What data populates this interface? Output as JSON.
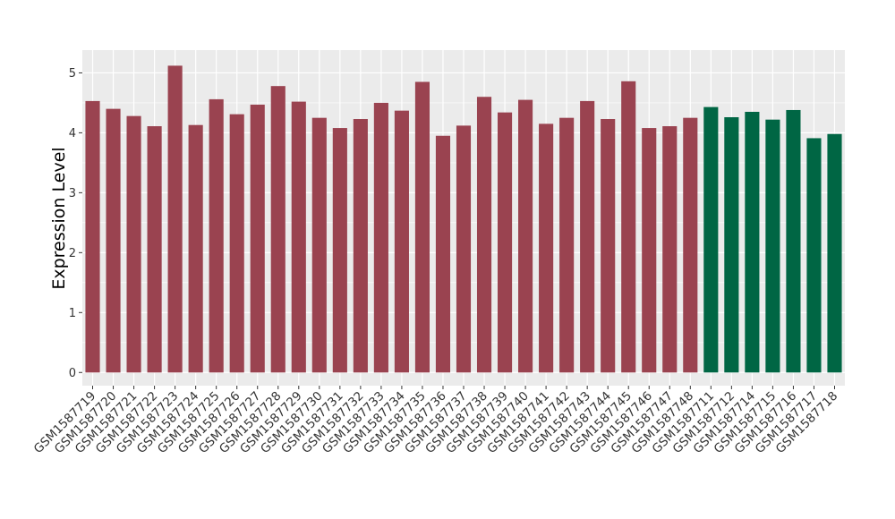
{
  "chart_data": {
    "type": "bar",
    "title": "",
    "xlabel": "",
    "ylabel": "Expression Level",
    "ylim": [
      -0.22,
      5.38
    ],
    "yticks": [
      0,
      1,
      2,
      3,
      4,
      5
    ],
    "grid": true,
    "legend": "none",
    "categories": [
      "GSM1587719",
      "GSM1587720",
      "GSM1587721",
      "GSM1587722",
      "GSM1587723",
      "GSM1587724",
      "GSM1587725",
      "GSM1587726",
      "GSM1587727",
      "GSM1587728",
      "GSM1587729",
      "GSM1587730",
      "GSM1587731",
      "GSM1587732",
      "GSM1587733",
      "GSM1587734",
      "GSM1587735",
      "GSM1587736",
      "GSM1587737",
      "GSM1587738",
      "GSM1587739",
      "GSM1587740",
      "GSM1587741",
      "GSM1587742",
      "GSM1587743",
      "GSM1587744",
      "GSM1587745",
      "GSM1587746",
      "GSM1587747",
      "GSM1587748",
      "GSM1587711",
      "GSM1587712",
      "GSM1587714",
      "GSM1587715",
      "GSM1587716",
      "GSM1587717",
      "GSM1587718"
    ],
    "values": [
      4.53,
      4.4,
      4.28,
      4.11,
      5.12,
      4.13,
      4.56,
      4.31,
      4.47,
      4.78,
      4.52,
      4.25,
      4.08,
      4.23,
      4.5,
      4.37,
      4.85,
      3.95,
      4.12,
      4.6,
      4.34,
      4.55,
      4.15,
      4.25,
      4.53,
      4.23,
      4.86,
      4.08,
      4.11,
      4.25,
      4.43,
      4.26,
      4.35,
      4.22,
      4.38,
      3.91,
      3.98
    ],
    "groups": [
      0,
      0,
      0,
      0,
      0,
      0,
      0,
      0,
      0,
      0,
      0,
      0,
      0,
      0,
      0,
      0,
      0,
      0,
      0,
      0,
      0,
      0,
      0,
      0,
      0,
      0,
      0,
      0,
      0,
      0,
      1,
      1,
      1,
      1,
      1,
      1,
      1
    ],
    "colors": [
      "#9a4350",
      "#006644"
    ],
    "panel_color": "#ebebeb",
    "grid_color": "#ffffff"
  }
}
